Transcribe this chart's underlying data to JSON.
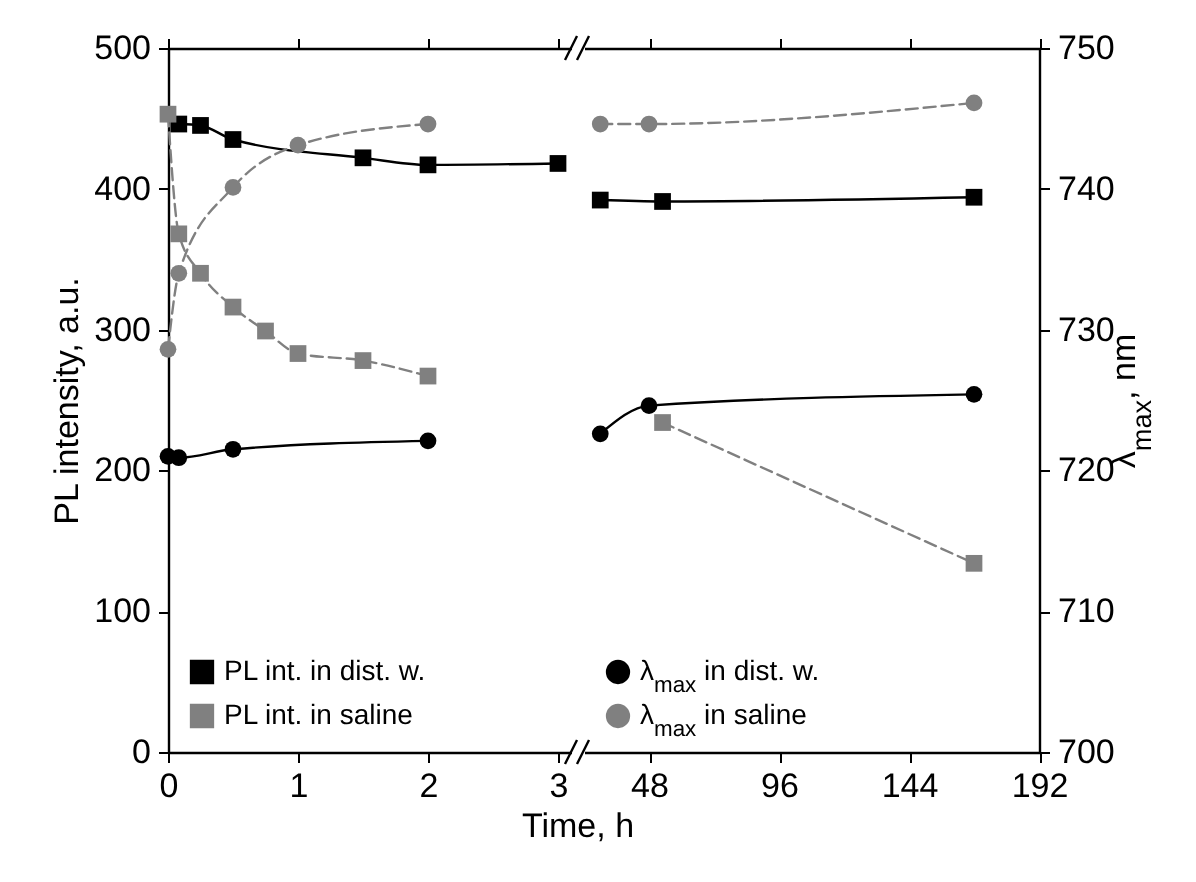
{
  "chart_data": [
    {
      "type": "line",
      "xlabel": "Time, h",
      "ylabel": "PL intensity, a.u.",
      "xlim": [
        0,
        3.1
      ],
      "xticks": [
        0,
        1,
        2,
        3
      ],
      "ylim": [
        0,
        500
      ],
      "yticks": [
        0,
        100,
        200,
        300,
        400,
        500
      ],
      "y2lim": [
        700,
        750
      ],
      "tick_labels": "xy",
      "legend": "bottom left",
      "grid": false,
      "series": [
        {
          "name": "PL int. in dist. w.",
          "color": "#000000",
          "marker": "square",
          "line_style": "solid",
          "x": [
            0.083,
            0.25,
            0.5,
            1.5,
            2,
            3
          ],
          "values": [
            446,
            445,
            435,
            422,
            417,
            418
          ]
        },
        {
          "name": "PL int. in saline",
          "color": "#808080",
          "marker": "square",
          "line_style": "dashed",
          "x": [
            0,
            0.083,
            0.25,
            0.5,
            0.75,
            1,
            1.5,
            2
          ],
          "values": [
            453,
            368,
            340,
            316,
            299,
            283,
            278,
            267
          ]
        },
        {
          "color": "#000000",
          "marker": "circle",
          "line_style": "solid",
          "axis": "y2",
          "x": [
            0,
            0.083,
            0.5,
            2
          ],
          "values": [
            721.0,
            720.9,
            721.5,
            722.1
          ]
        },
        {
          "color": "#808080",
          "marker": "circle",
          "line_style": "dashed",
          "axis": "y2",
          "x": [
            0,
            0.083,
            0.5,
            1,
            2
          ],
          "values": [
            728.6,
            734.0,
            740.1,
            743.1,
            744.6
          ]
        }
      ]
    },
    {
      "type": "line",
      "y2label": "λ$_{max}$, nm",
      "xlim": [
        24,
        192
      ],
      "xticks": [
        48,
        96,
        144,
        192
      ],
      "ylim": [
        0,
        500
      ],
      "y2lim": [
        700,
        750
      ],
      "y2ticks": [
        700,
        710,
        720,
        730,
        740,
        750
      ],
      "tick_labels": "xy2",
      "legend": "bottom left",
      "grid": false,
      "series": [
        {
          "color": "#000000",
          "marker": "square",
          "line_style": "solid",
          "x": [
            30,
            53,
            168
          ],
          "values": [
            392,
            391,
            394
          ]
        },
        {
          "color": "#808080",
          "marker": "square",
          "line_style": "dashed",
          "x": [
            53,
            168
          ],
          "values": [
            234,
            134
          ]
        },
        {
          "name": "λ$_{max}$ in dist. w.",
          "color": "#000000",
          "marker": "circle",
          "line_style": "solid",
          "axis": "y2",
          "x": [
            30,
            48,
            168
          ],
          "values": [
            722.6,
            724.6,
            725.4
          ]
        },
        {
          "name": "λ$_{max}$ in saline",
          "color": "#808080",
          "marker": "circle",
          "line_style": "dashed",
          "axis": "y2",
          "x": [
            30,
            48,
            168
          ],
          "values": [
            744.6,
            744.6,
            746.1
          ]
        }
      ]
    }
  ]
}
